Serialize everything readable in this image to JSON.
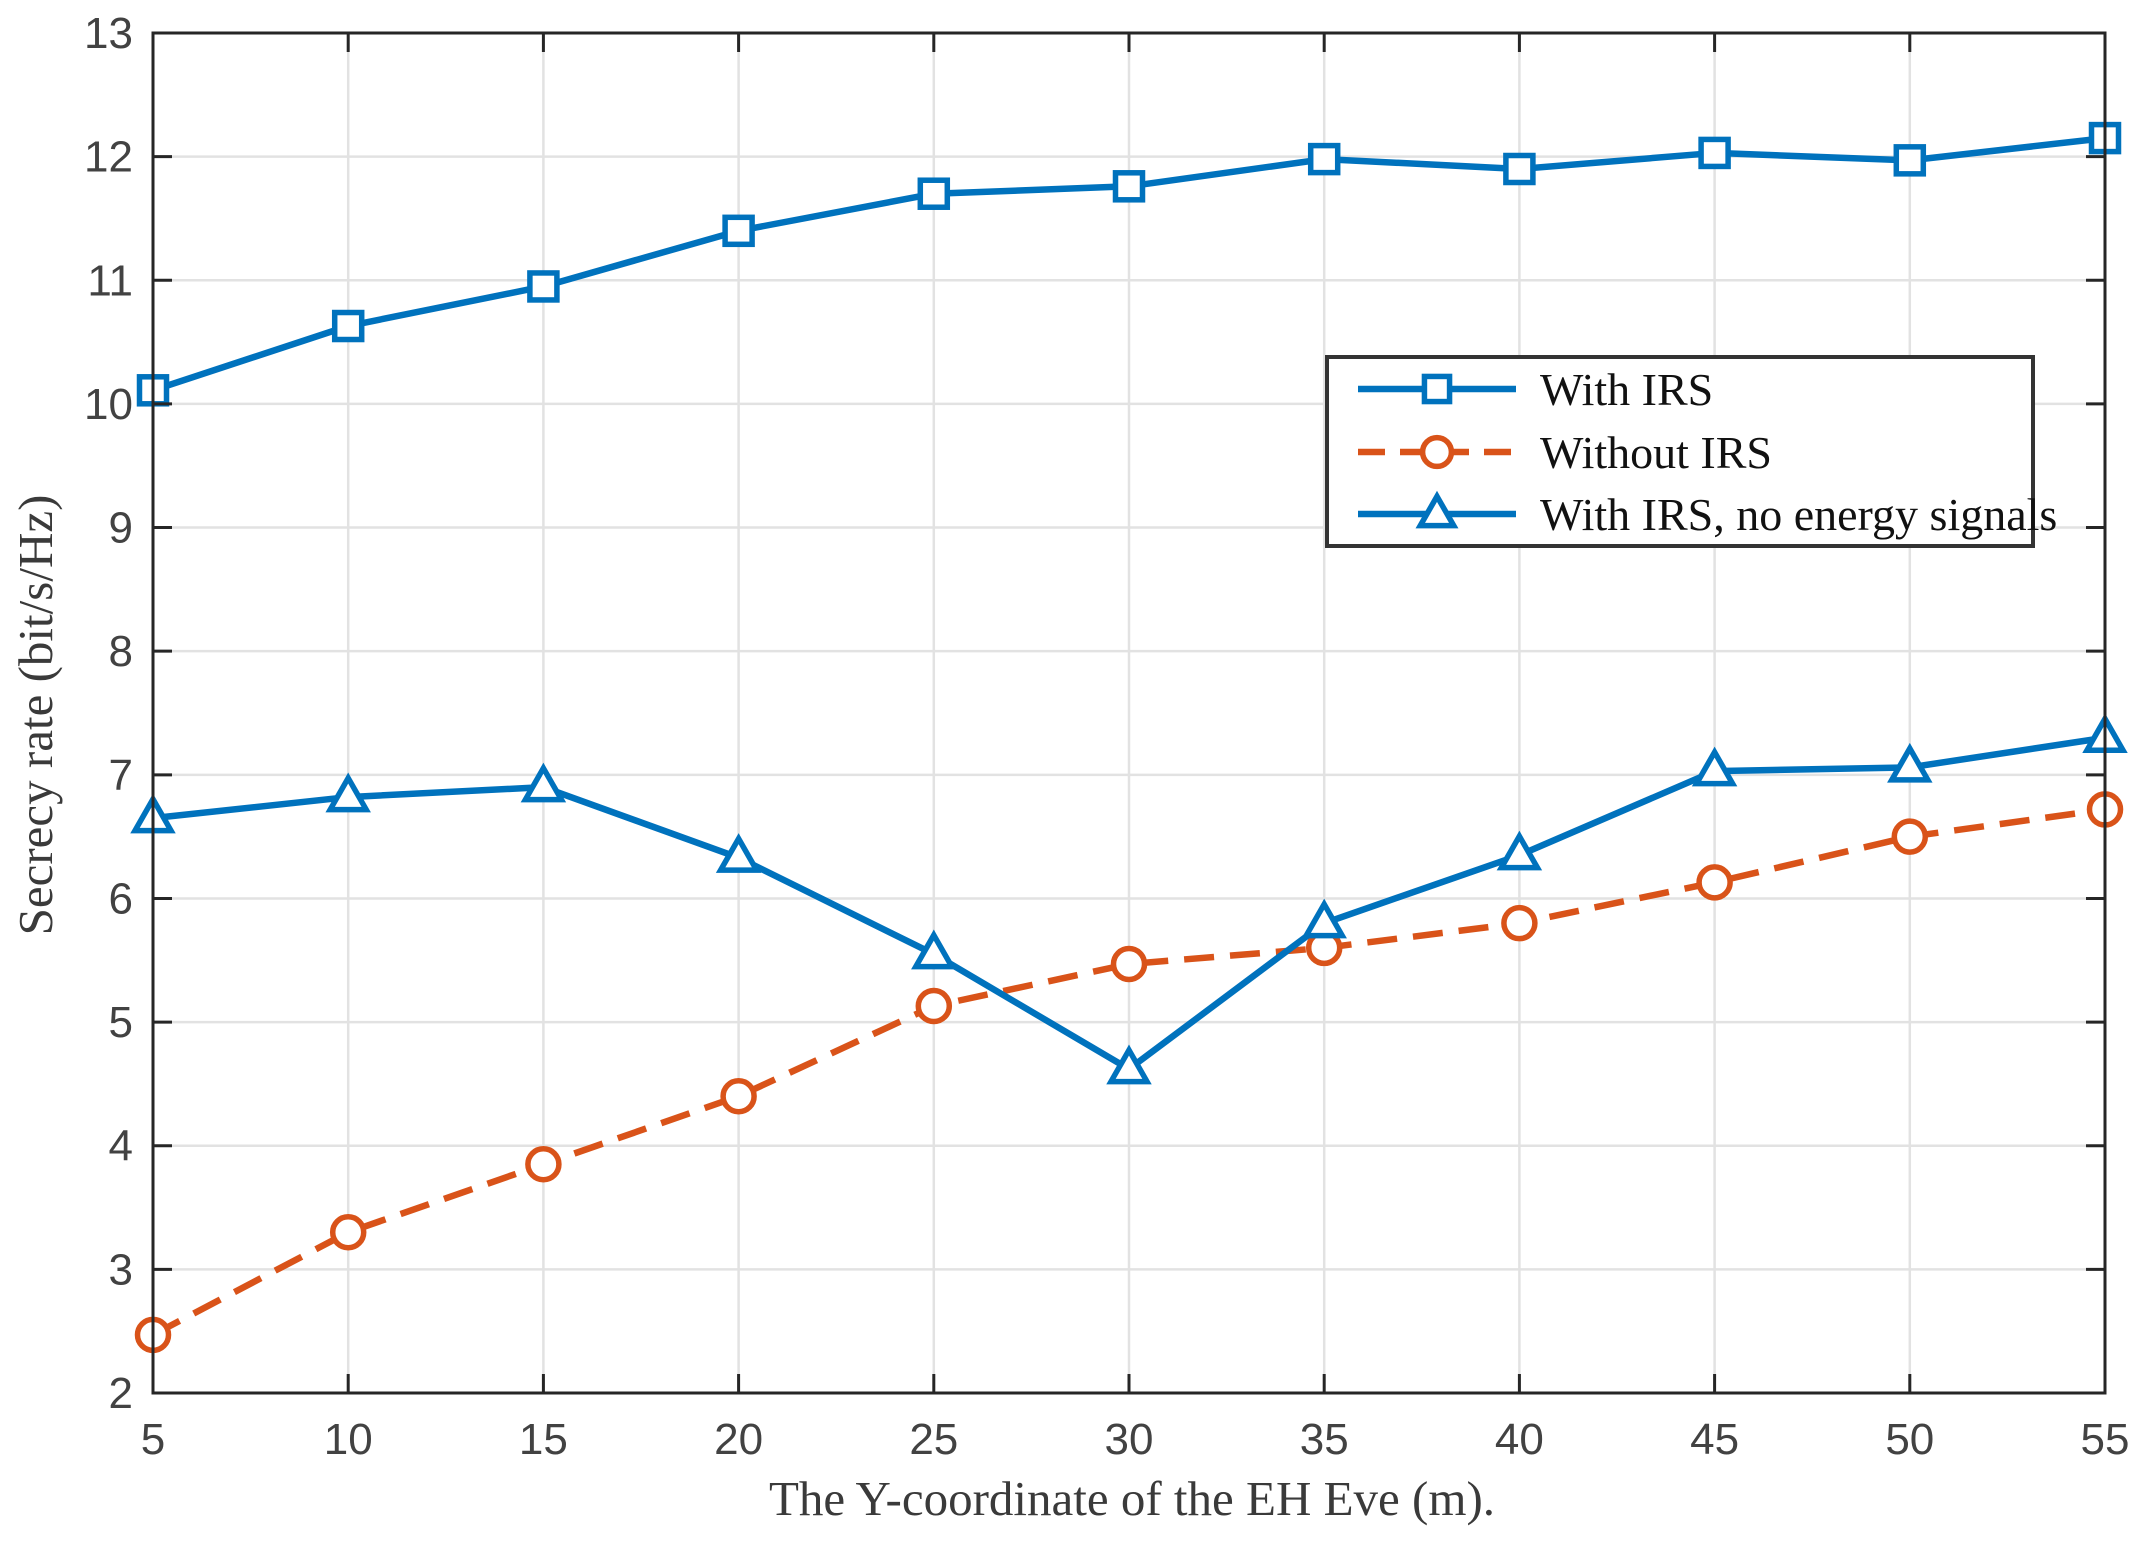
{
  "chart_data": {
    "type": "line",
    "title": "",
    "xlabel": "The Y-coordinate of the EH Eve (m).",
    "ylabel": "Secrecy rate (bit/s/Hz)",
    "xlim": [
      5,
      55
    ],
    "ylim": [
      2,
      13
    ],
    "x_ticks": [
      5,
      10,
      15,
      20,
      25,
      30,
      35,
      40,
      45,
      50,
      55
    ],
    "y_ticks": [
      2,
      3,
      4,
      5,
      6,
      7,
      8,
      9,
      10,
      11,
      12,
      13
    ],
    "grid": true,
    "legend_position": "upper right inside",
    "x": [
      5,
      10,
      15,
      20,
      25,
      30,
      35,
      40,
      45,
      50,
      55
    ],
    "series": [
      {
        "name": "With IRS",
        "color": "#0072BD",
        "line_style": "solid",
        "marker": "square",
        "values": [
          10.11,
          10.63,
          10.95,
          11.4,
          11.7,
          11.76,
          11.98,
          11.9,
          12.03,
          11.97,
          12.15
        ]
      },
      {
        "name": "Without IRS",
        "color": "#D95319",
        "line_style": "dashed",
        "marker": "circle",
        "values": [
          2.47,
          3.3,
          3.85,
          4.4,
          5.13,
          5.47,
          5.6,
          5.8,
          6.13,
          6.5,
          6.72
        ]
      },
      {
        "name": "With IRS, no energy signals",
        "color": "#0072BD",
        "line_style": "solid",
        "marker": "triangle-up",
        "values": [
          6.65,
          6.82,
          6.9,
          6.33,
          5.55,
          4.62,
          5.8,
          6.35,
          7.03,
          7.06,
          7.3
        ]
      }
    ],
    "colors": {
      "grid": "#e2e2e2",
      "axis_box": "#262626",
      "tick_text": "#424242",
      "label_text": "#3a3a3a",
      "legend_border": "#333333",
      "background": "#ffffff"
    }
  }
}
